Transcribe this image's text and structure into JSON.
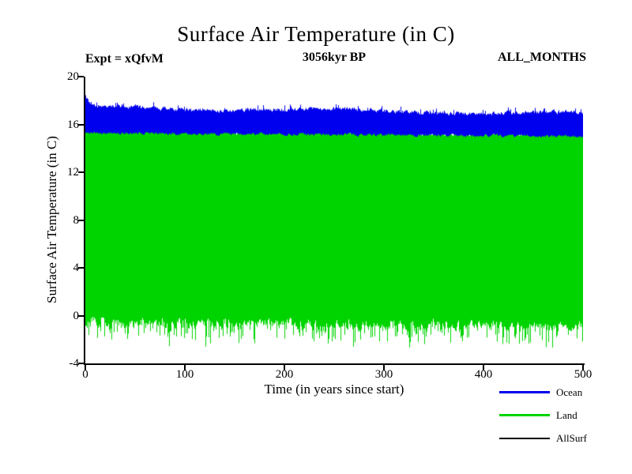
{
  "chart_data": {
    "type": "line",
    "title": "Surface Air Temperature (in C)",
    "annotations": {
      "left": "Expt = xQfvM",
      "center": "3056kyr BP",
      "right": "ALL_MONTHS"
    },
    "xlabel": "Time (in years since start)",
    "ylabel": "Surface Air Temperature (in C)",
    "xlim": [
      0,
      500
    ],
    "ylim": [
      -4,
      20
    ],
    "xticks": [
      0,
      100,
      200,
      300,
      400,
      500
    ],
    "yticks": [
      20,
      16,
      12,
      8,
      4,
      0,
      -4
    ],
    "grid": false,
    "legend_position": "bottom-right",
    "series": [
      {
        "name": "Ocean",
        "color": "#0000ee",
        "style": "dense-monthly-band",
        "line_weight": 3,
        "envelope": {
          "seed": 11,
          "top_start": 17.45,
          "top_end": 16.9,
          "bottom_start": 15.3,
          "bottom_end": 15.0,
          "top_noise": 0.3,
          "bottom_noise": 0.2,
          "top_wobble": 0.12,
          "initial_spike_max": 18.6
        }
      },
      {
        "name": "Land",
        "color": "#00d400",
        "style": "dense-monthly-band",
        "line_weight": 3,
        "envelope": {
          "seed": 23,
          "top_start": 15.55,
          "top_end": 15.2,
          "bottom_start": -0.55,
          "bottom_end": -0.85,
          "top_noise": 0.3,
          "bottom_noise": 0.7,
          "top_wobble": 0.08,
          "spike_prob": 0.5,
          "spike_max": 1.6
        }
      },
      {
        "name": "AllSurf",
        "color": "#000000",
        "style": "hidden-under-bands",
        "line_weight": 2
      }
    ]
  }
}
